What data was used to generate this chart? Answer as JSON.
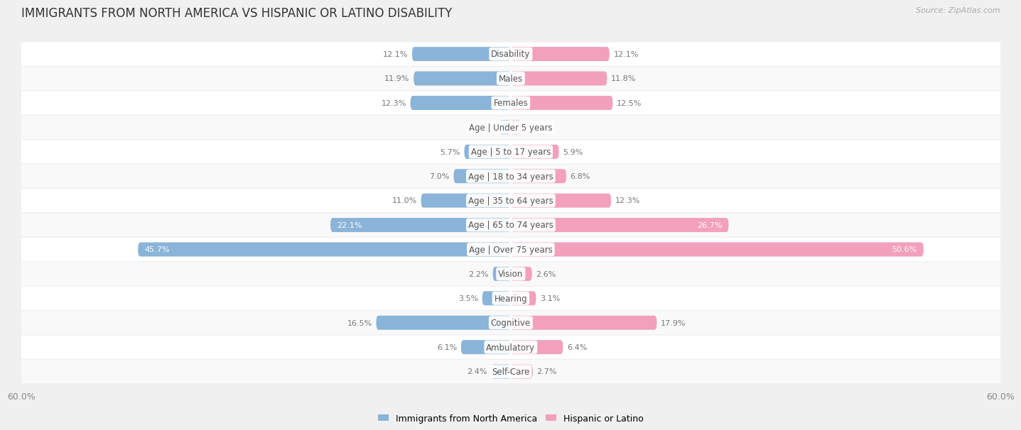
{
  "title": "IMMIGRANTS FROM NORTH AMERICA VS HISPANIC OR LATINO DISABILITY",
  "source": "Source: ZipAtlas.com",
  "categories": [
    "Disability",
    "Males",
    "Females",
    "Age | Under 5 years",
    "Age | 5 to 17 years",
    "Age | 18 to 34 years",
    "Age | 35 to 64 years",
    "Age | 65 to 74 years",
    "Age | Over 75 years",
    "Vision",
    "Hearing",
    "Cognitive",
    "Ambulatory",
    "Self-Care"
  ],
  "left_values": [
    12.1,
    11.9,
    12.3,
    1.4,
    5.7,
    7.0,
    11.0,
    22.1,
    45.7,
    2.2,
    3.5,
    16.5,
    6.1,
    2.4
  ],
  "right_values": [
    12.1,
    11.8,
    12.5,
    1.3,
    5.9,
    6.8,
    12.3,
    26.7,
    50.6,
    2.6,
    3.1,
    17.9,
    6.4,
    2.7
  ],
  "left_color": "#8ab4d8",
  "right_color": "#f2a0bb",
  "left_label": "Immigrants from North America",
  "right_label": "Hispanic or Latino",
  "xlim": 60.0,
  "axis_label": "60.0%",
  "background_color": "#f0f0f0",
  "row_color_even": "#f9f9f9",
  "row_color_odd": "#ffffff",
  "title_fontsize": 12,
  "label_fontsize": 8.5,
  "value_fontsize": 8,
  "bar_height": 0.58,
  "fig_width": 14.06,
  "fig_height": 6.12
}
